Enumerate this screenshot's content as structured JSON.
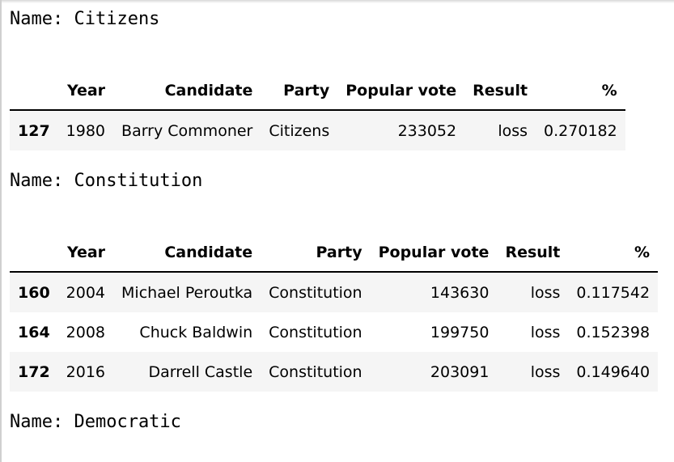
{
  "groups": [
    {
      "name_label": "Name: Citizens",
      "columns": [
        "",
        "Year",
        "Candidate",
        "Party",
        "Popular vote",
        "Result",
        "%"
      ],
      "rows": [
        [
          "127",
          "1980",
          "Barry Commoner",
          "Citizens",
          "233052",
          "loss",
          "0.270182"
        ]
      ]
    },
    {
      "name_label": "Name: Constitution",
      "columns": [
        "",
        "Year",
        "Candidate",
        "Party",
        "Popular vote",
        "Result",
        "%"
      ],
      "rows": [
        [
          "160",
          "2004",
          "Michael Peroutka",
          "Constitution",
          "143630",
          "loss",
          "0.117542"
        ],
        [
          "164",
          "2008",
          "Chuck Baldwin",
          "Constitution",
          "199750",
          "loss",
          "0.152398"
        ],
        [
          "172",
          "2016",
          "Darrell Castle",
          "Constitution",
          "203091",
          "loss",
          "0.149640"
        ]
      ]
    },
    {
      "name_label": "Name: Democratic"
    }
  ]
}
